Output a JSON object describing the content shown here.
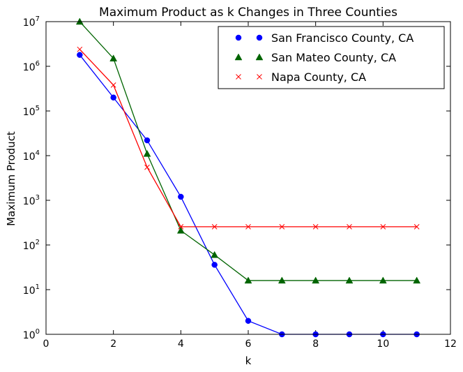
{
  "chart_data": {
    "type": "line",
    "title": "Maximum Product as k Changes in Three Counties",
    "xlabel": "k",
    "ylabel": "Maximum Product",
    "yscale": "log",
    "xlim": [
      0,
      12
    ],
    "ylim": [
      1,
      10000000
    ],
    "xticks": [
      "0",
      "2",
      "4",
      "6",
      "8",
      "10",
      "12"
    ],
    "yticks": [
      {
        "base": "10",
        "exp": "0"
      },
      {
        "base": "10",
        "exp": "1"
      },
      {
        "base": "10",
        "exp": "2"
      },
      {
        "base": "10",
        "exp": "3"
      },
      {
        "base": "10",
        "exp": "4"
      },
      {
        "base": "10",
        "exp": "5"
      },
      {
        "base": "10",
        "exp": "6"
      },
      {
        "base": "10",
        "exp": "7"
      }
    ],
    "grid": false,
    "legend_position": "upper-right",
    "series": [
      {
        "name": "San Francisco County, CA",
        "color": "#0000ff",
        "marker": "circle",
        "x": [
          1,
          2,
          3,
          4,
          5,
          6,
          7,
          8,
          9,
          10,
          11
        ],
        "values": [
          1800000,
          200000,
          22000,
          1200,
          36,
          2,
          1,
          1,
          1,
          1,
          1
        ]
      },
      {
        "name": "San Mateo County, CA",
        "color": "#006400",
        "marker": "triangle",
        "x": [
          1,
          2,
          3,
          4,
          5,
          6,
          7,
          8,
          9,
          10,
          11
        ],
        "values": [
          10000000,
          1500000,
          11000,
          210,
          60,
          16,
          16,
          16,
          16,
          16,
          16
        ]
      },
      {
        "name": "Napa County, CA",
        "color": "#ff0000",
        "marker": "x",
        "x": [
          1,
          2,
          3,
          4,
          5,
          6,
          7,
          8,
          9,
          10,
          11
        ],
        "values": [
          2400000,
          380000,
          5500,
          256,
          256,
          256,
          256,
          256,
          256,
          256,
          256
        ]
      }
    ]
  }
}
